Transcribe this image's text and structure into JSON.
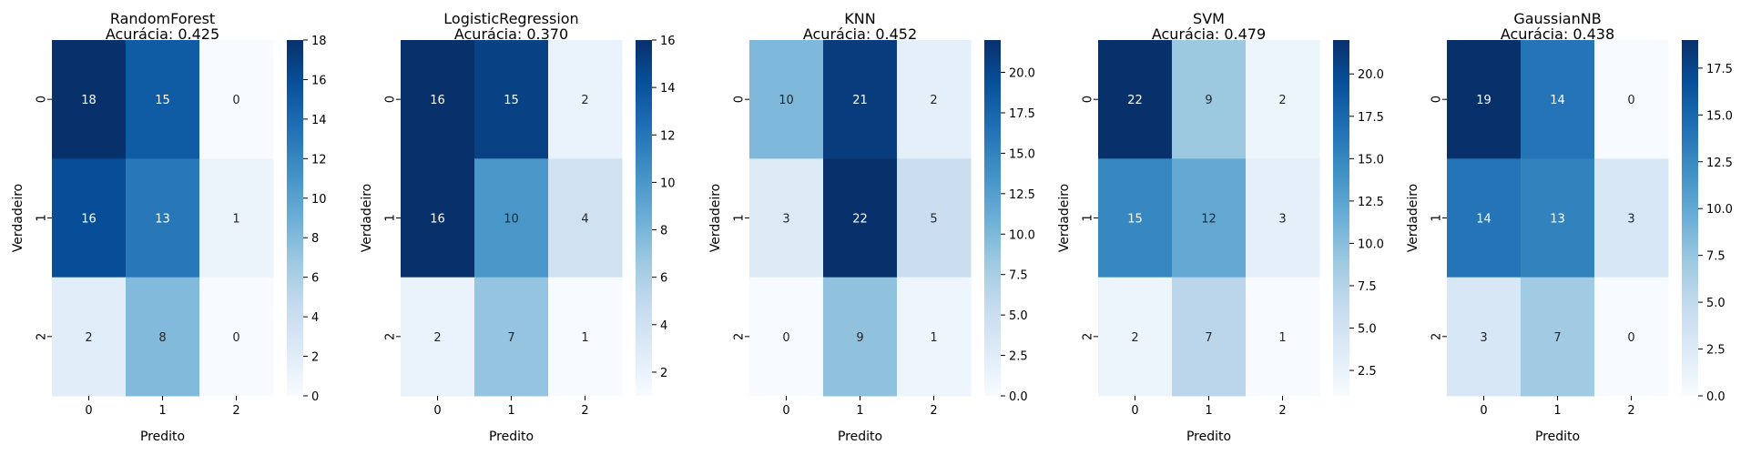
{
  "chart_data": [
    {
      "type": "heatmap",
      "title": "RandomForest",
      "subtitle": "Acurácia: 0.425",
      "xlabel": "Predito",
      "ylabel": "Verdadeiro",
      "x_ticks": [
        "0",
        "1",
        "2"
      ],
      "y_ticks": [
        "0",
        "1",
        "2"
      ],
      "values": [
        [
          18,
          15,
          0
        ],
        [
          16,
          13,
          1
        ],
        [
          2,
          8,
          0
        ]
      ],
      "colorbar_range": [
        0,
        18
      ],
      "colorbar_ticks": [
        "0",
        "2",
        "4",
        "6",
        "8",
        "10",
        "12",
        "14",
        "16",
        "18"
      ]
    },
    {
      "type": "heatmap",
      "title": "LogisticRegression",
      "subtitle": "Acurácia: 0.370",
      "xlabel": "Predito",
      "ylabel": "Verdadeiro",
      "x_ticks": [
        "0",
        "1",
        "2"
      ],
      "y_ticks": [
        "0",
        "1",
        "2"
      ],
      "values": [
        [
          16,
          15,
          2
        ],
        [
          16,
          10,
          4
        ],
        [
          2,
          7,
          1
        ]
      ],
      "colorbar_range": [
        1,
        16
      ],
      "colorbar_ticks": [
        "2",
        "4",
        "6",
        "8",
        "10",
        "12",
        "14",
        "16"
      ]
    },
    {
      "type": "heatmap",
      "title": "KNN",
      "subtitle": "Acurácia: 0.452",
      "xlabel": "Predito",
      "ylabel": "Verdadeiro",
      "x_ticks": [
        "0",
        "1",
        "2"
      ],
      "y_ticks": [
        "0",
        "1",
        "2"
      ],
      "values": [
        [
          10,
          21,
          2
        ],
        [
          3,
          22,
          5
        ],
        [
          0,
          9,
          1
        ]
      ],
      "colorbar_range": [
        0,
        22
      ],
      "colorbar_ticks": [
        "0.0",
        "2.5",
        "5.0",
        "7.5",
        "10.0",
        "12.5",
        "15.0",
        "17.5",
        "20.0"
      ]
    },
    {
      "type": "heatmap",
      "title": "SVM",
      "subtitle": "Acurácia: 0.479",
      "xlabel": "Predito",
      "ylabel": "Verdadeiro",
      "x_ticks": [
        "0",
        "1",
        "2"
      ],
      "y_ticks": [
        "0",
        "1",
        "2"
      ],
      "values": [
        [
          22,
          9,
          2
        ],
        [
          15,
          12,
          3
        ],
        [
          2,
          7,
          1
        ]
      ],
      "colorbar_range": [
        1,
        22
      ],
      "colorbar_ticks": [
        "2.5",
        "5.0",
        "7.5",
        "10.0",
        "12.5",
        "15.0",
        "17.5",
        "20.0"
      ]
    },
    {
      "type": "heatmap",
      "title": "GaussianNB",
      "subtitle": "Acurácia: 0.438",
      "xlabel": "Predito",
      "ylabel": "Verdadeiro",
      "x_ticks": [
        "0",
        "1",
        "2"
      ],
      "y_ticks": [
        "0",
        "1",
        "2"
      ],
      "values": [
        [
          19,
          14,
          0
        ],
        [
          14,
          13,
          3
        ],
        [
          3,
          7,
          0
        ]
      ],
      "colorbar_range": [
        0,
        19
      ],
      "colorbar_ticks": [
        "0.0",
        "2.5",
        "5.0",
        "7.5",
        "10.0",
        "12.5",
        "15.0",
        "17.5"
      ]
    }
  ],
  "colormap": "Blues",
  "colormap_stops": [
    "#f7fbff",
    "#deebf7",
    "#c6dbef",
    "#9ecae1",
    "#6baed6",
    "#4292c6",
    "#2171b5",
    "#08519c",
    "#08306b"
  ]
}
